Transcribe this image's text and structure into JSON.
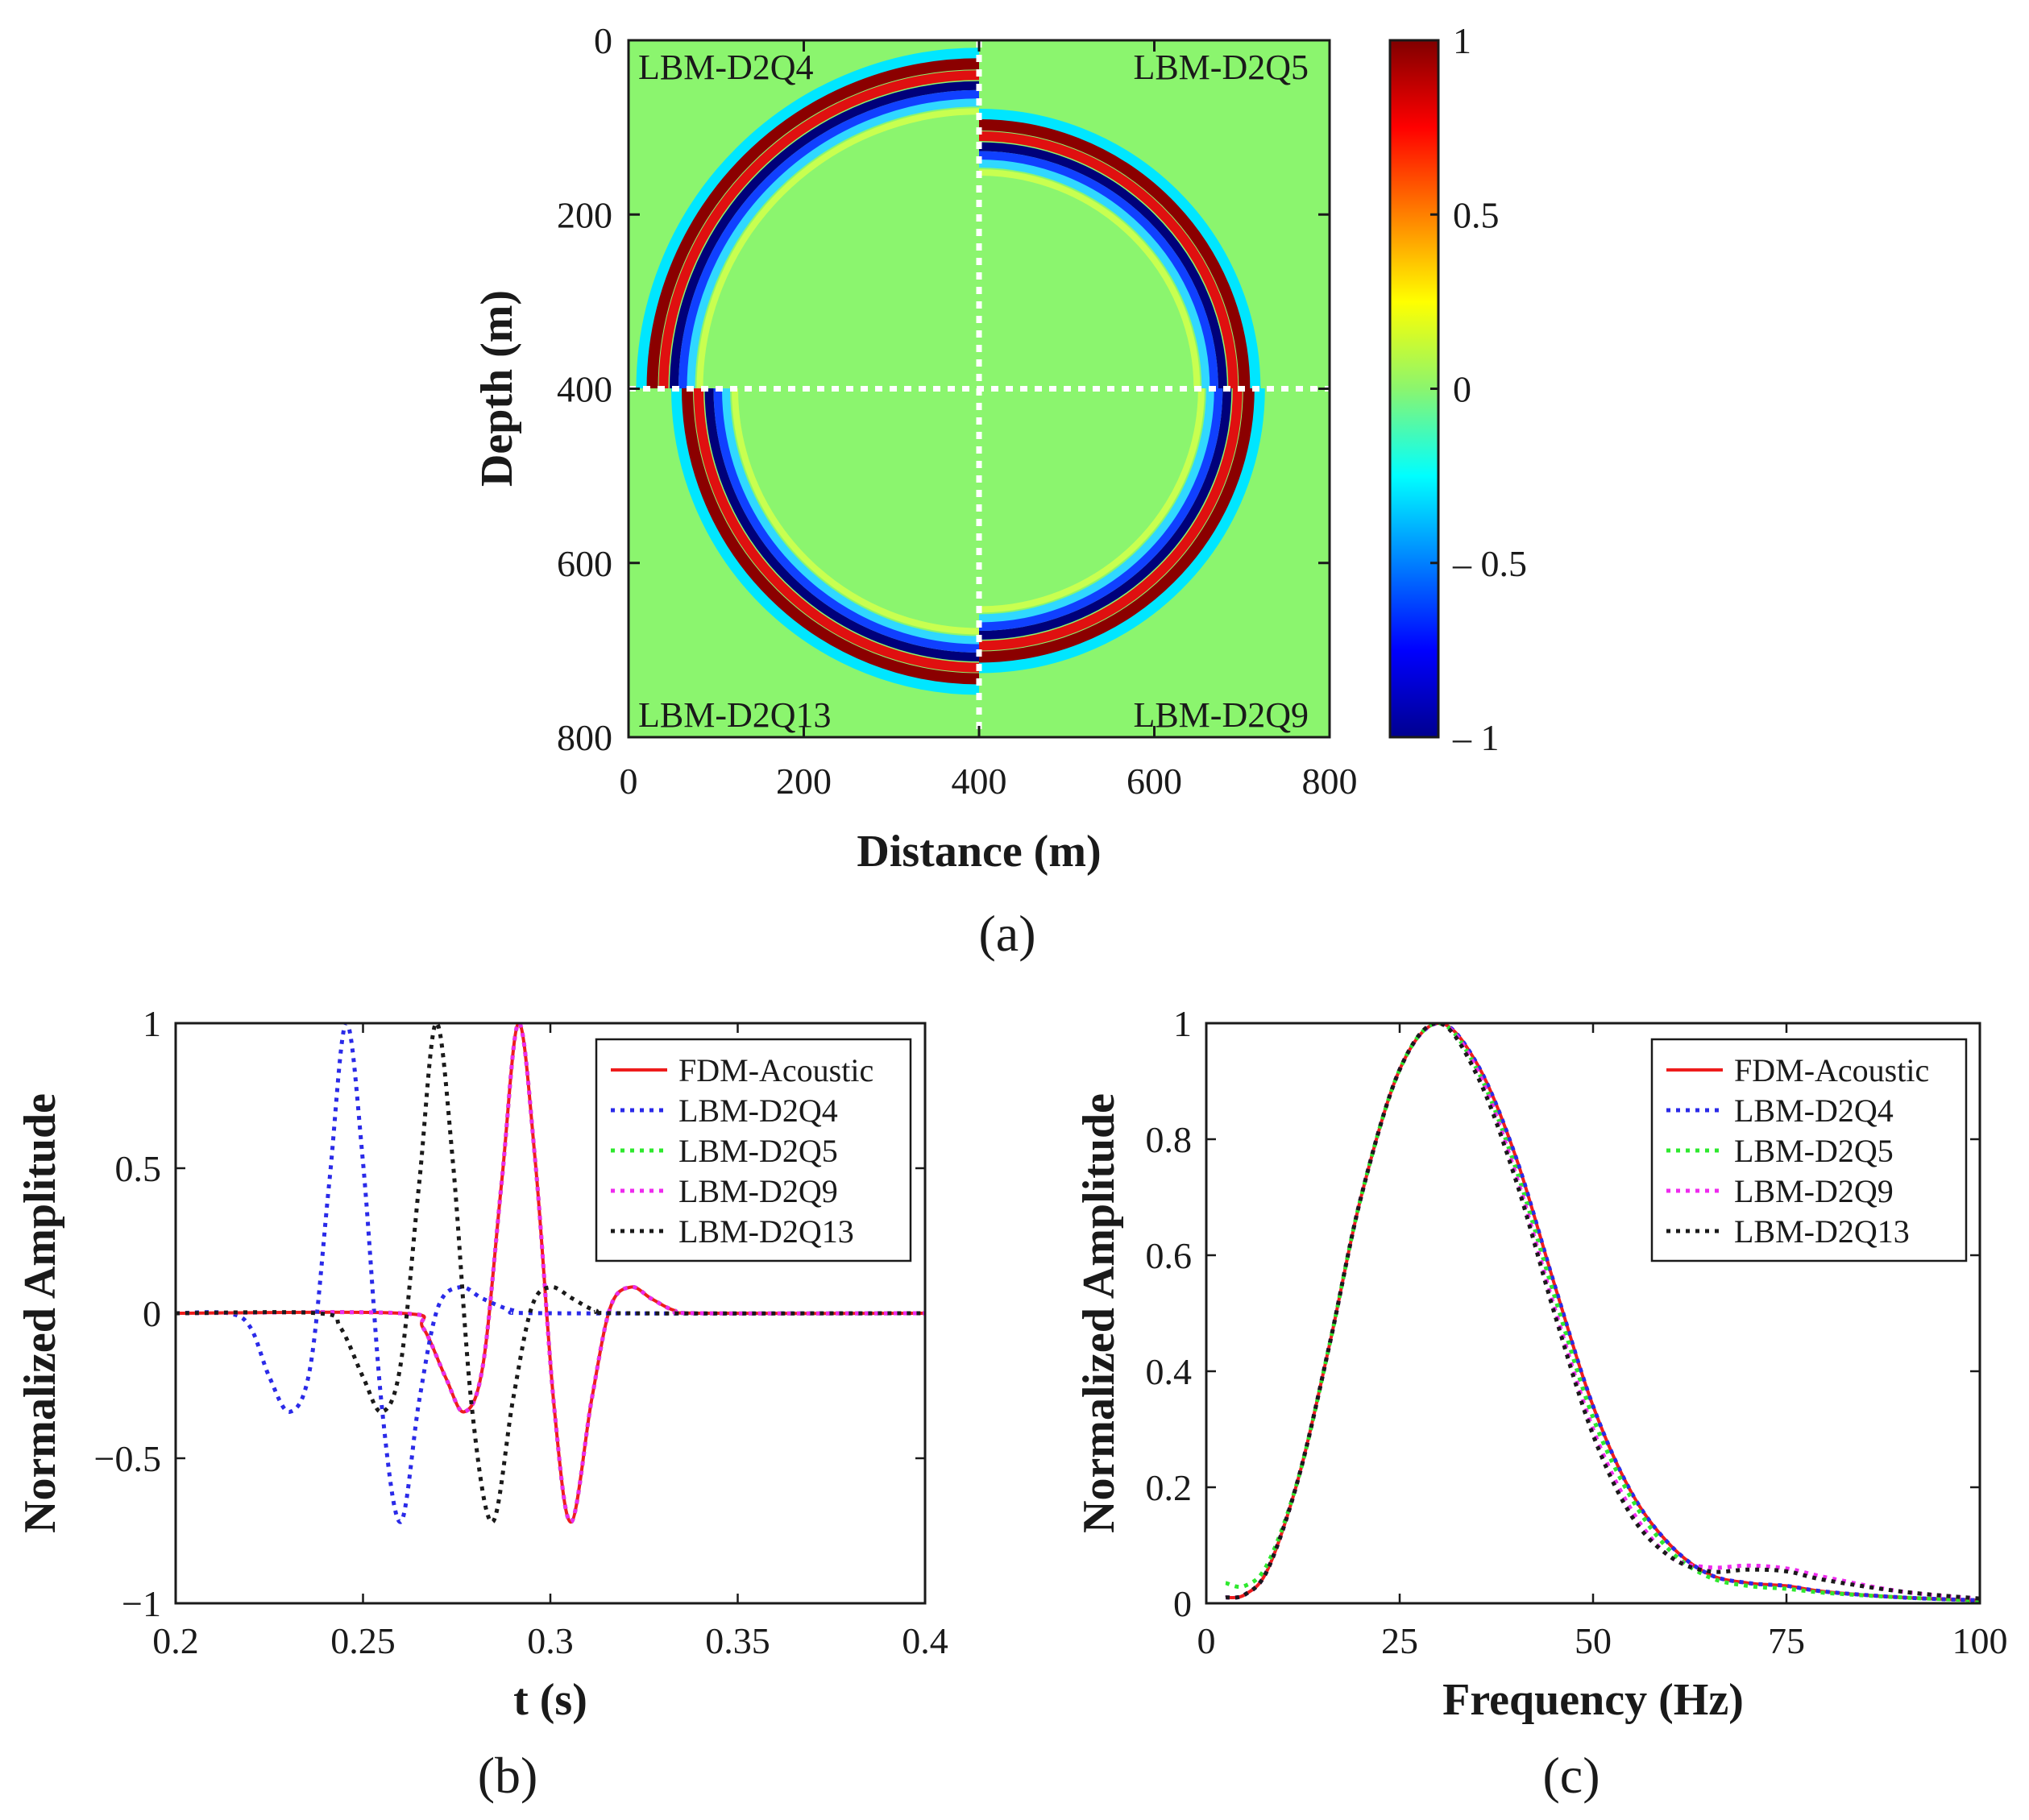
{
  "panels": {
    "a": "(a)",
    "b": "(b)",
    "c": "(c)"
  },
  "chart_data": [
    {
      "id": "a",
      "type": "heatmap",
      "title": "",
      "xlabel": "Distance (m)",
      "ylabel": "Depth (m)",
      "xlim": [
        0,
        800
      ],
      "ylim": [
        0,
        800
      ],
      "xticks": [
        "0",
        "200",
        "400",
        "600",
        "800"
      ],
      "yticks": [
        "0",
        "200",
        "400",
        "600",
        "800"
      ],
      "colorbar": {
        "range": [
          -1,
          1
        ],
        "ticks": [
          "1",
          "0.5",
          "0",
          "– 0.5",
          "– 1"
        ],
        "tick_values": [
          1,
          0.5,
          0,
          -0.5,
          -1
        ]
      },
      "background_color": "#8bf56e",
      "source": [
        400,
        400
      ],
      "quadrants": [
        {
          "label": "LBM-D2Q4",
          "position": "top-left",
          "wavefront_radius": 360
        },
        {
          "label": "LBM-D2Q5",
          "position": "top-right",
          "wavefront_radius": 290
        },
        {
          "label": "LBM-D2Q13",
          "position": "bottom-left",
          "wavefront_radius": 320
        },
        {
          "label": "LBM-D2Q9",
          "position": "bottom-right",
          "wavefront_radius": 295
        }
      ],
      "divider_lines": {
        "x": 400,
        "y": 400,
        "style": "white-dotted"
      }
    },
    {
      "id": "b",
      "type": "line",
      "xlabel": "t (s)",
      "ylabel": "Normalized Amplitude",
      "xlim": [
        0.2,
        0.4
      ],
      "ylim": [
        -1,
        1
      ],
      "xticks": [
        "0.2",
        "0.25",
        "0.3",
        "0.35",
        "0.4"
      ],
      "xtick_values": [
        0.2,
        0.25,
        0.3,
        0.35,
        0.4
      ],
      "yticks": [
        "−1",
        "−0.5",
        "0",
        "0.5",
        "1"
      ],
      "ytick_values": [
        -1,
        -0.5,
        0,
        0.5,
        1
      ],
      "legend_position": "top-right",
      "series": [
        {
          "name": "FDM-Acoustic",
          "color": "#ee1c1c",
          "style": "solid",
          "x": [
            0.2,
            0.26,
            0.266,
            0.272,
            0.277,
            0.282,
            0.287,
            0.2915,
            0.296,
            0.301,
            0.3055,
            0.311,
            0.316,
            0.3215,
            0.327,
            0.333,
            0.34,
            0.4
          ],
          "y": [
            0,
            0,
            -0.05,
            -0.22,
            -0.34,
            -0.18,
            0.45,
            1.0,
            0.52,
            -0.32,
            -0.72,
            -0.3,
            0.02,
            0.09,
            0.05,
            0.01,
            0,
            0
          ]
        },
        {
          "name": "LBM-D2Q4",
          "color": "#2a2ae8",
          "style": "dotted",
          "x": [
            0.2,
            0.214,
            0.22,
            0.225,
            0.2305,
            0.236,
            0.241,
            0.2455,
            0.25,
            0.255,
            0.26,
            0.265,
            0.27,
            0.276,
            0.282,
            0.29,
            0.3,
            0.4
          ],
          "y": [
            0,
            0,
            -0.05,
            -0.22,
            -0.34,
            -0.18,
            0.45,
            1.0,
            0.52,
            -0.32,
            -0.72,
            -0.3,
            0.02,
            0.09,
            0.05,
            0.01,
            0,
            0
          ]
        },
        {
          "name": "LBM-D2Q5",
          "color": "#2ee82e",
          "style": "dotted",
          "x": [
            0.2,
            0.26,
            0.266,
            0.272,
            0.277,
            0.282,
            0.287,
            0.2915,
            0.296,
            0.301,
            0.3055,
            0.311,
            0.316,
            0.3215,
            0.327,
            0.333,
            0.34,
            0.4
          ],
          "y": [
            0,
            0,
            -0.05,
            -0.22,
            -0.34,
            -0.18,
            0.45,
            1.0,
            0.52,
            -0.32,
            -0.72,
            -0.3,
            0.02,
            0.09,
            0.05,
            0.01,
            0,
            0
          ]
        },
        {
          "name": "LBM-D2Q9",
          "color": "#ee2aee",
          "style": "dotted",
          "x": [
            0.2,
            0.26,
            0.266,
            0.272,
            0.277,
            0.282,
            0.287,
            0.2915,
            0.296,
            0.301,
            0.3055,
            0.311,
            0.316,
            0.3215,
            0.327,
            0.333,
            0.34,
            0.4
          ],
          "y": [
            0,
            0,
            -0.05,
            -0.22,
            -0.34,
            -0.18,
            0.45,
            1.0,
            0.52,
            -0.32,
            -0.72,
            -0.3,
            0.02,
            0.09,
            0.05,
            0.01,
            0,
            0
          ]
        },
        {
          "name": "LBM-D2Q13",
          "color": "#1a1a1a",
          "style": "dotted",
          "x": [
            0.2,
            0.238,
            0.244,
            0.25,
            0.255,
            0.26,
            0.265,
            0.2695,
            0.274,
            0.279,
            0.2845,
            0.29,
            0.295,
            0.3,
            0.306,
            0.312,
            0.32,
            0.4
          ],
          "y": [
            0,
            0,
            -0.05,
            -0.22,
            -0.34,
            -0.18,
            0.45,
            1.0,
            0.52,
            -0.32,
            -0.72,
            -0.3,
            0.02,
            0.09,
            0.05,
            0.01,
            0,
            0
          ]
        }
      ]
    },
    {
      "id": "c",
      "type": "line",
      "xlabel": "Frequency (Hz)",
      "ylabel": "Normalized Amplitude",
      "xlim": [
        0,
        100
      ],
      "ylim": [
        0,
        1
      ],
      "xticks": [
        "0",
        "25",
        "50",
        "75",
        "100"
      ],
      "xtick_values": [
        0,
        25,
        50,
        75,
        100
      ],
      "yticks": [
        "0",
        "0.2",
        "0.4",
        "0.6",
        "0.8",
        "1"
      ],
      "ytick_values": [
        0,
        0.2,
        0.4,
        0.6,
        0.8,
        1
      ],
      "legend_position": "top-right",
      "series": [
        {
          "name": "FDM-Acoustic",
          "color": "#ee1c1c",
          "style": "solid",
          "x": [
            2.5,
            5,
            8,
            12,
            16,
            20,
            25,
            30,
            35,
            40,
            45,
            50,
            55,
            60,
            65,
            70,
            75,
            80,
            90,
            100
          ],
          "y": [
            0.01,
            0.015,
            0.06,
            0.22,
            0.45,
            0.7,
            0.92,
            1.0,
            0.93,
            0.77,
            0.55,
            0.34,
            0.19,
            0.1,
            0.05,
            0.035,
            0.03,
            0.02,
            0.01,
            0.005
          ]
        },
        {
          "name": "LBM-D2Q4",
          "color": "#2a2ae8",
          "style": "dotted",
          "x": [
            2.5,
            5,
            8,
            12,
            16,
            20,
            25,
            30,
            35,
            40,
            45,
            50,
            55,
            60,
            65,
            70,
            75,
            80,
            90,
            100
          ],
          "y": [
            0.01,
            0.015,
            0.06,
            0.22,
            0.45,
            0.7,
            0.92,
            1.0,
            0.93,
            0.77,
            0.55,
            0.34,
            0.19,
            0.1,
            0.05,
            0.035,
            0.03,
            0.02,
            0.01,
            0.005
          ]
        },
        {
          "name": "LBM-D2Q5",
          "color": "#2ee82e",
          "style": "dotted",
          "x": [
            2.5,
            5,
            8,
            12,
            16,
            20,
            25,
            30,
            35,
            40,
            45,
            50,
            55,
            60,
            65,
            70,
            75,
            80,
            90,
            100
          ],
          "y": [
            0.035,
            0.03,
            0.07,
            0.22,
            0.45,
            0.7,
            0.92,
            1.0,
            0.92,
            0.75,
            0.53,
            0.32,
            0.18,
            0.09,
            0.045,
            0.03,
            0.025,
            0.018,
            0.01,
            0.005
          ]
        },
        {
          "name": "LBM-D2Q9",
          "color": "#ee2aee",
          "style": "dotted",
          "x": [
            2.5,
            5,
            8,
            12,
            16,
            20,
            25,
            30,
            35,
            40,
            45,
            50,
            55,
            60,
            65,
            70,
            75,
            80,
            90,
            100
          ],
          "y": [
            0.01,
            0.015,
            0.06,
            0.22,
            0.45,
            0.7,
            0.92,
            1.0,
            0.92,
            0.74,
            0.51,
            0.3,
            0.16,
            0.08,
            0.062,
            0.065,
            0.06,
            0.045,
            0.02,
            0.008
          ]
        },
        {
          "name": "LBM-D2Q13",
          "color": "#1a1a1a",
          "style": "dotted",
          "x": [
            2.5,
            5,
            8,
            12,
            16,
            20,
            25,
            30,
            35,
            40,
            45,
            50,
            55,
            60,
            65,
            70,
            75,
            80,
            90,
            100
          ],
          "y": [
            0.01,
            0.015,
            0.06,
            0.22,
            0.45,
            0.7,
            0.92,
            1.0,
            0.91,
            0.73,
            0.5,
            0.29,
            0.15,
            0.08,
            0.055,
            0.058,
            0.055,
            0.04,
            0.02,
            0.008
          ]
        }
      ]
    }
  ]
}
